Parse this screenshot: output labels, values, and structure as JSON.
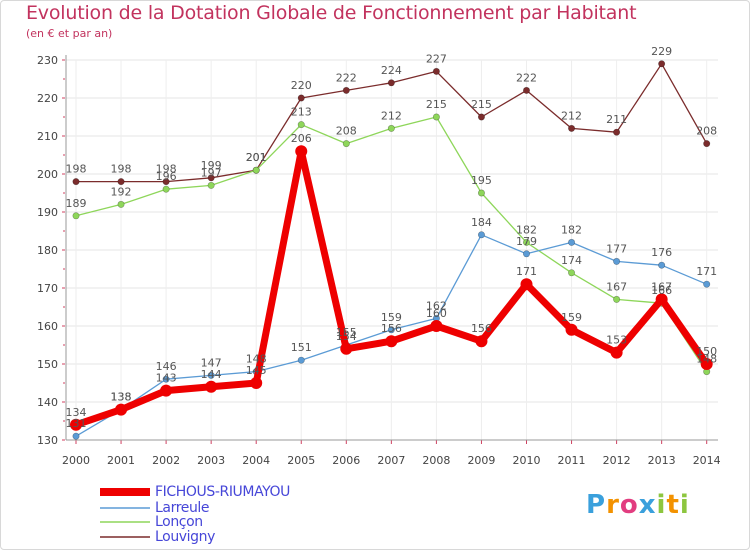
{
  "header": {
    "title": "Evolution de la Dotation Globale de Fonctionnement par Habitant",
    "subtitle": "(en € et par an)"
  },
  "chart_data": {
    "type": "line",
    "title": "Evolution de la Dotation Globale de Fonctionnement par Habitant",
    "subtitle": "(en € et par an)",
    "xlabel": "",
    "ylabel": "",
    "x": [
      2000,
      2001,
      2002,
      2003,
      2004,
      2005,
      2006,
      2007,
      2008,
      2009,
      2010,
      2011,
      2012,
      2013,
      2014
    ],
    "ylim": [
      130,
      230
    ],
    "yticks": [
      130,
      140,
      150,
      160,
      170,
      180,
      190,
      200,
      210,
      220,
      230
    ],
    "grid": true,
    "legend": "bottom-left",
    "series": [
      {
        "name": "Louvigny",
        "color": "#7b2c2c",
        "values": [
          198,
          198,
          198,
          199,
          201,
          220,
          222,
          224,
          227,
          215,
          222,
          212,
          211,
          229,
          208
        ]
      },
      {
        "name": "Lonçon",
        "color": "#8ed65a",
        "values": [
          189,
          192,
          196,
          197,
          201,
          213,
          208,
          212,
          215,
          195,
          182,
          174,
          167,
          166,
          148
        ]
      },
      {
        "name": "Larreule",
        "color": "#5b9bd5",
        "values": [
          131,
          138,
          146,
          147,
          148,
          151,
          155,
          159,
          162,
          184,
          179,
          182,
          177,
          176,
          171
        ]
      },
      {
        "name": "FICHOUS-RIUMAYOU",
        "color": "#ee0000",
        "values": [
          134,
          138,
          143,
          144,
          145,
          206,
          154,
          156,
          160,
          156,
          171,
          159,
          153,
          167,
          150
        ]
      }
    ]
  },
  "legend": {
    "items": [
      "FICHOUS-RIUMAYOU",
      "Larreule",
      "Lonçon",
      "Louvigny"
    ]
  },
  "logo": {
    "text": "Proxiti"
  }
}
